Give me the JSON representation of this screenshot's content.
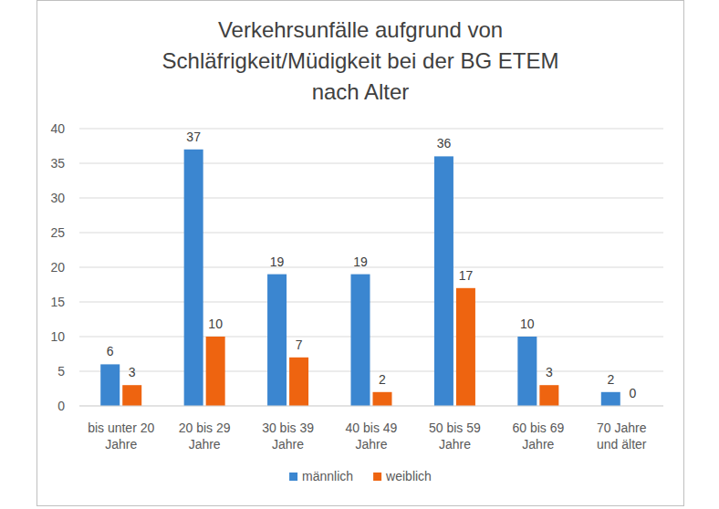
{
  "chart_data": {
    "type": "bar",
    "title": "Verkehrsunfälle aufgrund von Schläfrigkeit/Müdigkeit bei der BG ETEM nach Alter",
    "categories": [
      "bis unter 20 Jahre",
      "20 bis 29 Jahre",
      "30 bis 39 Jahre",
      "40 bis 49 Jahre",
      "50 bis 59 Jahre",
      "60 bis 69 Jahre",
      "70 Jahre und älter"
    ],
    "series": [
      {
        "name": "männlich",
        "color": "#3b86d0",
        "values": [
          6,
          37,
          19,
          19,
          36,
          10,
          2
        ]
      },
      {
        "name": "weiblich",
        "color": "#ee6410",
        "values": [
          3,
          10,
          7,
          2,
          17,
          3,
          0
        ]
      }
    ],
    "ylim": [
      0,
      40
    ],
    "yticks": [
      0,
      5,
      10,
      15,
      20,
      25,
      30,
      35,
      40
    ],
    "grid": true,
    "data_labels": true,
    "legend": "bottom"
  }
}
